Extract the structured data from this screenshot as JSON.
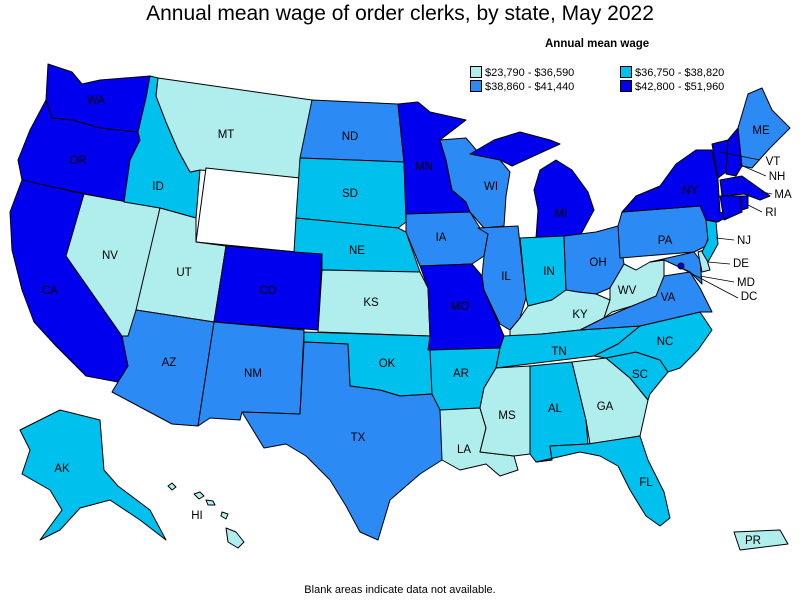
{
  "title": "Annual mean wage of order clerks, by state, May 2022",
  "legend": {
    "title": "Annual mean wage",
    "bins": [
      {
        "range": "$23,790 - $36,590",
        "color": "#b0eded"
      },
      {
        "range": "$36,750 - $38,820",
        "color": "#00c0ee"
      },
      {
        "range": "$38,860 - $41,440",
        "color": "#2c8af4"
      },
      {
        "range": "$42,800 - $51,960",
        "color": "#0000ee"
      }
    ]
  },
  "footnote": "Blank areas indicate data not available.",
  "states": {
    "WA": {
      "label": "WA",
      "bin": 3
    },
    "OR": {
      "label": "OR",
      "bin": 3
    },
    "CA": {
      "label": "CA",
      "bin": 3
    },
    "ID": {
      "label": "ID",
      "bin": 1
    },
    "NV": {
      "label": "NV",
      "bin": 0
    },
    "MT": {
      "label": "MT",
      "bin": 0
    },
    "WY": {
      "label": "",
      "bin": null
    },
    "UT": {
      "label": "UT",
      "bin": 0
    },
    "AZ": {
      "label": "AZ",
      "bin": 2
    },
    "CO": {
      "label": "CO",
      "bin": 3
    },
    "NM": {
      "label": "NM",
      "bin": 2
    },
    "ND": {
      "label": "ND",
      "bin": 2
    },
    "SD": {
      "label": "SD",
      "bin": 1
    },
    "NE": {
      "label": "NE",
      "bin": 1
    },
    "KS": {
      "label": "KS",
      "bin": 0
    },
    "OK": {
      "label": "OK",
      "bin": 1
    },
    "TX": {
      "label": "TX",
      "bin": 2
    },
    "MN": {
      "label": "MN",
      "bin": 3
    },
    "IA": {
      "label": "IA",
      "bin": 2
    },
    "MO": {
      "label": "MO",
      "bin": 3
    },
    "AR": {
      "label": "AR",
      "bin": 1
    },
    "LA": {
      "label": "LA",
      "bin": 0
    },
    "WI": {
      "label": "WI",
      "bin": 2
    },
    "IL": {
      "label": "IL",
      "bin": 2
    },
    "MI": {
      "label": "MI",
      "bin": 3
    },
    "IN": {
      "label": "IN",
      "bin": 1
    },
    "OH": {
      "label": "OH",
      "bin": 2
    },
    "KY": {
      "label": "KY",
      "bin": 0
    },
    "TN": {
      "label": "TN",
      "bin": 1
    },
    "MS": {
      "label": "MS",
      "bin": 0
    },
    "AL": {
      "label": "AL",
      "bin": 1
    },
    "GA": {
      "label": "GA",
      "bin": 0
    },
    "FL": {
      "label": "FL",
      "bin": 1
    },
    "SC": {
      "label": "SC",
      "bin": 1
    },
    "NC": {
      "label": "NC",
      "bin": 1
    },
    "VA": {
      "label": "VA",
      "bin": 2
    },
    "WV": {
      "label": "WV",
      "bin": 0
    },
    "PA": {
      "label": "PA",
      "bin": 2
    },
    "NY": {
      "label": "NY",
      "bin": 3
    },
    "ME": {
      "label": "ME",
      "bin": 2
    },
    "VT": {
      "label": "VT",
      "bin": 3
    },
    "NH": {
      "label": "NH",
      "bin": 3
    },
    "MA": {
      "label": "MA",
      "bin": 3
    },
    "RI": {
      "label": "RI",
      "bin": 3
    },
    "CT": {
      "label": "",
      "bin": 3
    },
    "NJ": {
      "label": "NJ",
      "bin": 1
    },
    "DE": {
      "label": "DE",
      "bin": 0
    },
    "MD": {
      "label": "MD",
      "bin": 2
    },
    "DC": {
      "label": "DC",
      "bin": 3
    },
    "AK": {
      "label": "AK",
      "bin": 1
    },
    "HI": {
      "label": "HI",
      "bin": 0
    },
    "PR": {
      "label": "PR",
      "bin": 0
    }
  }
}
